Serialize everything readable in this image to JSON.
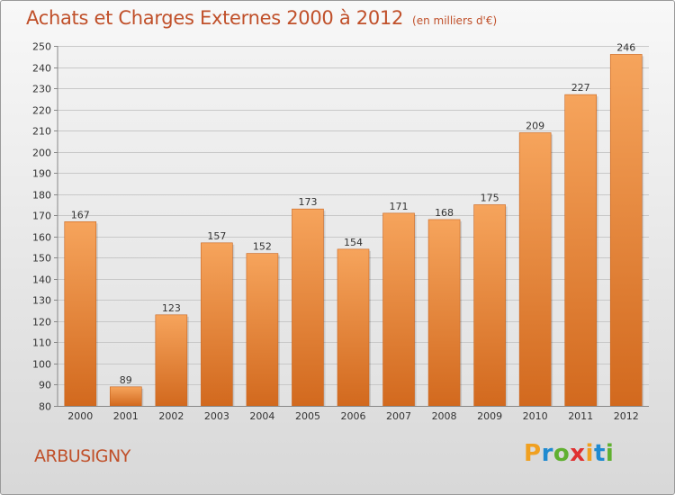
{
  "header": {
    "title": "Achats et Charges Externes 2000 à 2012",
    "unit": "(en milliers d'€)"
  },
  "footer": {
    "commune": "ARBUSIGNY",
    "logo_letters": [
      "P",
      "r",
      "o",
      "x",
      "i",
      "t",
      "i"
    ],
    "logo_colors": [
      "#f0a020",
      "#1f8ad0",
      "#60b030",
      "#e03030",
      "#f0a020",
      "#1f8ad0",
      "#60b030"
    ]
  },
  "colors": {
    "bar_top": "#f6a45c",
    "bar_bottom": "#d2691e",
    "accent": "#c0502a"
  },
  "chart_data": {
    "type": "bar",
    "categories": [
      "2000",
      "2001",
      "2002",
      "2003",
      "2004",
      "2005",
      "2006",
      "2007",
      "2008",
      "2009",
      "2010",
      "2011",
      "2012"
    ],
    "values": [
      167,
      89,
      123,
      157,
      152,
      173,
      154,
      171,
      168,
      175,
      209,
      227,
      246
    ],
    "title": "Achats et Charges Externes 2000 à 2012",
    "ylim": [
      80,
      250
    ],
    "yticks": [
      80,
      90,
      100,
      110,
      120,
      130,
      140,
      150,
      160,
      170,
      180,
      190,
      200,
      210,
      220,
      230,
      240,
      250
    ],
    "grid": true,
    "data_labels": true
  }
}
